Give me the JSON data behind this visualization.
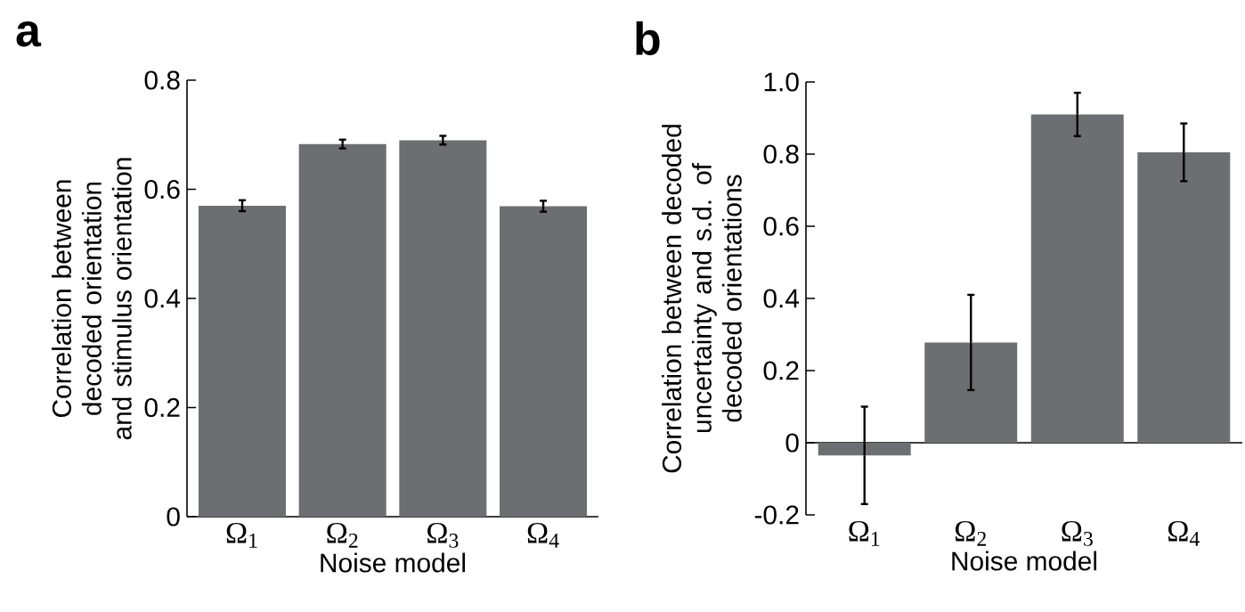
{
  "chart_data": [
    {
      "type": "bar",
      "title": "a",
      "categories": [
        "Ω$_{1}$",
        "Ω$_{2}$",
        "Ω$_{3}$",
        "Ω$_{4}$"
      ],
      "values": [
        0.57,
        0.683,
        0.69,
        0.569
      ],
      "errors": [
        0.01,
        0.008,
        0.008,
        0.01
      ],
      "color": "#6d6e71",
      "xlabel": "Noise model",
      "ylabel": "Correlation between decoded orientation and stimulus orientation",
      "ylim": [
        0,
        0.8
      ],
      "yticks": [
        0,
        0.2,
        0.4,
        0.6,
        0.8
      ],
      "grid": false
    },
    {
      "type": "bar",
      "title": "b",
      "categories": [
        "Ω$_{1}$",
        "Ω$_{2}$",
        "Ω$_{3}$",
        "Ω$_{4}$"
      ],
      "values": [
        -0.035,
        0.278,
        0.91,
        0.805
      ],
      "errors": [
        0.135,
        0.132,
        0.06,
        0.08
      ],
      "color": "#6d6e71",
      "xlabel": "Noise model",
      "ylabel": "Correlation between decoded uncertainty and s.d. of decoded orientations",
      "ylim": [
        -0.2,
        1.0
      ],
      "yticks": [
        -0.2,
        0,
        0.2,
        0.4,
        0.6,
        {
          "value": 0.8,
          "label": "0.8"
        },
        {
          "value": 1,
          "label": "1.0"
        }
      ],
      "grid": false
    }
  ]
}
